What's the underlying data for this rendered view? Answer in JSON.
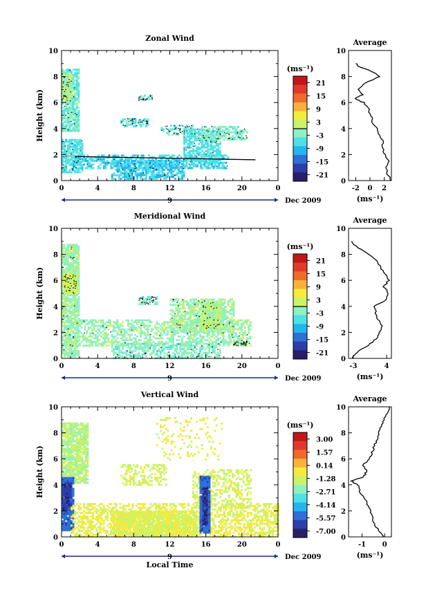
{
  "figure": {
    "x_axis_label": "Local Time",
    "date_label": "Dec 2009",
    "day_label": "9",
    "average_title": "Average",
    "unit_label": "(ms⁻¹)",
    "height_label": "Height (km)"
  },
  "colors": {
    "colormap": [
      "#2a1f6b",
      "#2c3fa8",
      "#2f6fd8",
      "#25b5ee",
      "#4fe0e8",
      "#8ff0c0",
      "#c8f36a",
      "#f6ea3b",
      "#f6b23a",
      "#f06a2e",
      "#e23a2a",
      "#c01818"
    ]
  },
  "chart_data": [
    {
      "type": "heatmap",
      "title": "Zonal Wind",
      "ylabel": "Height (km)",
      "xlabel": "",
      "x_ticks": [
        "0",
        "4",
        "8",
        "12",
        "16",
        "20",
        "0"
      ],
      "y_ticks": [
        "0",
        "2",
        "4",
        "6",
        "8",
        "10"
      ],
      "xlim": [
        0,
        24
      ],
      "ylim": [
        0,
        10
      ],
      "colorbar": {
        "unit": "(ms⁻¹)",
        "ticks": [
          "21",
          "15",
          "9",
          "3",
          "-3",
          "-9",
          "-15",
          "-21"
        ],
        "range": [
          -24,
          24
        ]
      },
      "average": {
        "title": "Average",
        "xlabel": "(ms⁻¹)",
        "x_ticks": [
          "-2",
          "0",
          "2"
        ],
        "xlim": [
          -3,
          3
        ],
        "y_ticks": [
          "0",
          "2",
          "4",
          "6",
          "8",
          "10"
        ],
        "profile": [
          {
            "h": 0.0,
            "v": 3.0
          },
          {
            "h": 0.5,
            "v": 2.4
          },
          {
            "h": 1.0,
            "v": 2.2
          },
          {
            "h": 1.5,
            "v": 2.6
          },
          {
            "h": 2.0,
            "v": 2.1
          },
          {
            "h": 2.5,
            "v": 1.7
          },
          {
            "h": 3.0,
            "v": 1.9
          },
          {
            "h": 3.5,
            "v": 1.4
          },
          {
            "h": 4.0,
            "v": 0.9
          },
          {
            "h": 4.5,
            "v": 0.4
          },
          {
            "h": 5.0,
            "v": 0.1
          },
          {
            "h": 5.5,
            "v": -0.2
          },
          {
            "h": 6.0,
            "v": -0.9
          },
          {
            "h": 6.3,
            "v": -2.2
          },
          {
            "h": 6.6,
            "v": -1.0
          },
          {
            "h": 7.0,
            "v": -1.6
          },
          {
            "h": 7.5,
            "v": -0.7
          },
          {
            "h": 8.0,
            "v": 1.4
          },
          {
            "h": 8.4,
            "v": 0.2
          },
          {
            "h": 8.8,
            "v": -1.6
          },
          {
            "h": 9.0,
            "v": -2.0
          }
        ]
      }
    },
    {
      "type": "heatmap",
      "title": "Meridional Wind",
      "ylabel": "Height (km)",
      "xlabel": "",
      "x_ticks": [
        "0",
        "4",
        "8",
        "12",
        "16",
        "20",
        "0"
      ],
      "y_ticks": [
        "0",
        "2",
        "4",
        "6",
        "8",
        "10"
      ],
      "xlim": [
        0,
        24
      ],
      "ylim": [
        0,
        10
      ],
      "colorbar": {
        "unit": "(ms⁻¹)",
        "ticks": [
          "21",
          "15",
          "9",
          "3",
          "-3",
          "-9",
          "-15",
          "-21"
        ],
        "range": [
          -24,
          24
        ]
      },
      "average": {
        "title": "Average",
        "xlabel": "(ms⁻¹)",
        "x_ticks": [
          "-3",
          "4"
        ],
        "xlim": [
          -4,
          5
        ],
        "y_ticks": [
          "0",
          "2",
          "4",
          "6",
          "8",
          "10"
        ],
        "profile": [
          {
            "h": 0.0,
            "v": -3.2
          },
          {
            "h": 0.5,
            "v": -2.0
          },
          {
            "h": 1.0,
            "v": 0.0
          },
          {
            "h": 1.5,
            "v": 1.8
          },
          {
            "h": 2.0,
            "v": 2.4
          },
          {
            "h": 2.5,
            "v": 3.2
          },
          {
            "h": 3.0,
            "v": 2.0
          },
          {
            "h": 3.5,
            "v": 1.8
          },
          {
            "h": 4.0,
            "v": 1.5
          },
          {
            "h": 4.5,
            "v": 3.8
          },
          {
            "h": 5.0,
            "v": 4.3
          },
          {
            "h": 5.5,
            "v": 3.4
          },
          {
            "h": 6.0,
            "v": 4.4
          },
          {
            "h": 6.5,
            "v": 3.6
          },
          {
            "h": 7.0,
            "v": 2.8
          },
          {
            "h": 7.5,
            "v": 2.0
          },
          {
            "h": 8.0,
            "v": 0.2
          },
          {
            "h": 8.5,
            "v": -2.0
          },
          {
            "h": 9.0,
            "v": -3.4
          }
        ]
      }
    },
    {
      "type": "heatmap",
      "title": "Vertical Wind",
      "ylabel": "Height (km)",
      "xlabel": "Local Time",
      "x_ticks": [
        "0",
        "4",
        "8",
        "12",
        "16",
        "20",
        "0"
      ],
      "y_ticks": [
        "0",
        "2",
        "4",
        "6",
        "8",
        "10"
      ],
      "xlim": [
        0,
        24
      ],
      "ylim": [
        0,
        10
      ],
      "colorbar": {
        "unit": "(ms⁻¹)",
        "ticks": [
          "3.00",
          "1.57",
          "0.14",
          "-1.28",
          "-2.71",
          "-4.14",
          "-5.57",
          "-7.00"
        ],
        "range": [
          -7.7,
          3.7
        ]
      },
      "average": {
        "title": "Average",
        "xlabel": "(ms⁻¹)",
        "x_ticks": [
          "-1",
          "0"
        ],
        "xlim": [
          -1.6,
          0.3
        ],
        "y_ticks": [
          "0",
          "2",
          "4",
          "6",
          "8",
          "10"
        ],
        "profile": [
          {
            "h": 0.0,
            "v": -0.05
          },
          {
            "h": 0.5,
            "v": -0.25
          },
          {
            "h": 1.0,
            "v": -0.45
          },
          {
            "h": 1.5,
            "v": -0.55
          },
          {
            "h": 2.0,
            "v": -0.65
          },
          {
            "h": 2.5,
            "v": -0.75
          },
          {
            "h": 3.0,
            "v": -0.9
          },
          {
            "h": 3.5,
            "v": -1.1
          },
          {
            "h": 4.0,
            "v": -1.2
          },
          {
            "h": 4.3,
            "v": -1.5
          },
          {
            "h": 4.6,
            "v": -0.95
          },
          {
            "h": 5.0,
            "v": -0.8
          },
          {
            "h": 5.5,
            "v": -0.95
          },
          {
            "h": 6.0,
            "v": -0.7
          },
          {
            "h": 6.5,
            "v": -0.55
          },
          {
            "h": 7.0,
            "v": -0.45
          },
          {
            "h": 7.5,
            "v": -0.35
          },
          {
            "h": 8.0,
            "v": -0.25
          },
          {
            "h": 8.5,
            "v": -0.15
          },
          {
            "h": 9.0,
            "v": -0.05
          },
          {
            "h": 9.5,
            "v": 0.1
          },
          {
            "h": 10.0,
            "v": 0.2
          }
        ]
      }
    }
  ]
}
